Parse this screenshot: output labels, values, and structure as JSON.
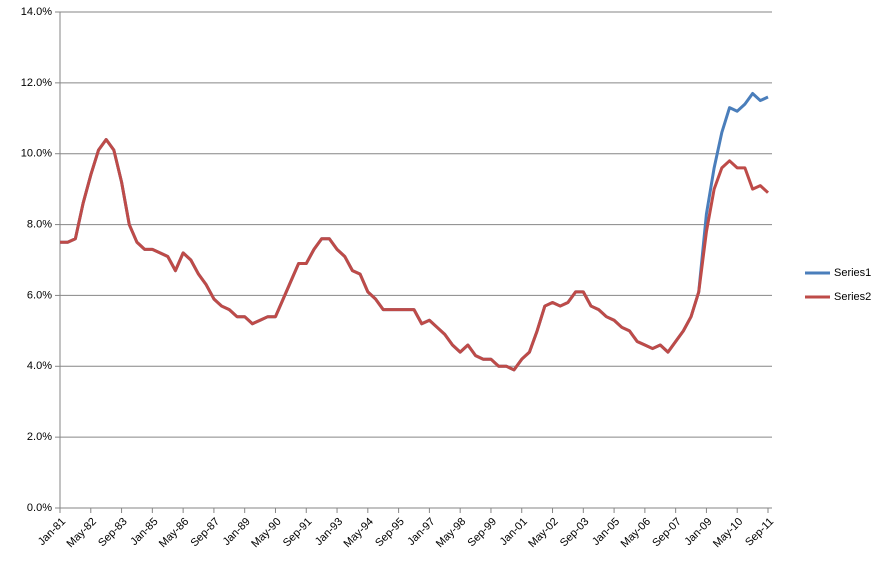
{
  "chart_data": {
    "type": "line",
    "categories": [
      "Jan-81",
      null,
      null,
      null,
      "May-82",
      null,
      null,
      null,
      "Sep-83",
      null,
      null,
      null,
      "Jan-85",
      null,
      null,
      null,
      "May-86",
      null,
      null,
      null,
      "Sep-87",
      null,
      null,
      null,
      "Jan-89",
      null,
      null,
      null,
      "May-90",
      null,
      null,
      null,
      "Sep-91",
      null,
      null,
      null,
      "Jan-93",
      null,
      null,
      null,
      "May-94",
      null,
      null,
      null,
      "Sep-95",
      null,
      null,
      null,
      "Jan-97",
      null,
      null,
      null,
      "May-98",
      null,
      null,
      null,
      "Sep-99",
      null,
      null,
      null,
      "Jan-01",
      null,
      null,
      null,
      "May-02",
      null,
      null,
      null,
      "Sep-03",
      null,
      null,
      null,
      "Jan-05",
      null,
      null,
      null,
      "May-06",
      null,
      null,
      null,
      "Sep-07",
      null,
      null,
      null,
      "Jan-09",
      null,
      null,
      null,
      "May-10",
      null,
      null,
      null,
      "Sep-11"
    ],
    "series": [
      {
        "name": "Series1",
        "color": "#4a7ebb",
        "values": [
          7.5,
          7.5,
          7.6,
          8.6,
          9.4,
          10.1,
          10.4,
          10.1,
          9.2,
          8.0,
          7.5,
          7.3,
          7.3,
          7.2,
          7.1,
          6.7,
          7.2,
          7.0,
          6.6,
          6.3,
          5.9,
          5.7,
          5.6,
          5.4,
          5.4,
          5.2,
          5.3,
          5.4,
          5.4,
          5.9,
          6.4,
          6.9,
          6.9,
          7.3,
          7.6,
          7.6,
          7.3,
          7.1,
          6.7,
          6.6,
          6.1,
          5.9,
          5.6,
          5.6,
          5.6,
          5.6,
          5.6,
          5.2,
          5.3,
          5.1,
          4.9,
          4.6,
          4.4,
          4.6,
          4.3,
          4.2,
          4.2,
          4.0,
          4.0,
          3.9,
          4.2,
          4.4,
          5.0,
          5.7,
          5.8,
          5.7,
          5.8,
          6.1,
          6.1,
          5.7,
          5.6,
          5.4,
          5.3,
          5.1,
          5.0,
          4.7,
          4.6,
          4.5,
          4.6,
          4.4,
          4.7,
          5.0,
          5.4,
          6.1,
          8.3,
          9.6,
          10.6,
          11.3,
          11.2,
          11.4,
          11.7,
          11.5,
          11.6
        ]
      },
      {
        "name": "Series2",
        "color": "#be4b48",
        "values": [
          7.5,
          7.5,
          7.6,
          8.6,
          9.4,
          10.1,
          10.4,
          10.1,
          9.2,
          8.0,
          7.5,
          7.3,
          7.3,
          7.2,
          7.1,
          6.7,
          7.2,
          7.0,
          6.6,
          6.3,
          5.9,
          5.7,
          5.6,
          5.4,
          5.4,
          5.2,
          5.3,
          5.4,
          5.4,
          5.9,
          6.4,
          6.9,
          6.9,
          7.3,
          7.6,
          7.6,
          7.3,
          7.1,
          6.7,
          6.6,
          6.1,
          5.9,
          5.6,
          5.6,
          5.6,
          5.6,
          5.6,
          5.2,
          5.3,
          5.1,
          4.9,
          4.6,
          4.4,
          4.6,
          4.3,
          4.2,
          4.2,
          4.0,
          4.0,
          3.9,
          4.2,
          4.4,
          5.0,
          5.7,
          5.8,
          5.7,
          5.8,
          6.1,
          6.1,
          5.7,
          5.6,
          5.4,
          5.3,
          5.1,
          5.0,
          4.7,
          4.6,
          4.5,
          4.6,
          4.4,
          4.7,
          5.0,
          5.4,
          6.1,
          7.8,
          9.0,
          9.6,
          9.8,
          9.6,
          9.6,
          9.0,
          9.1,
          8.9
        ]
      }
    ],
    "ylim": [
      0,
      14
    ],
    "yticks": [
      {
        "value": 0,
        "label": "0.0%"
      },
      {
        "value": 2,
        "label": "2.0%"
      },
      {
        "value": 4,
        "label": "4.0%"
      },
      {
        "value": 6,
        "label": "6.0%"
      },
      {
        "value": 8,
        "label": "8.0%"
      },
      {
        "value": 10,
        "label": "10.0%"
      },
      {
        "value": 12,
        "label": "12.0%"
      },
      {
        "value": 14,
        "label": "14.0%"
      }
    ],
    "grid": true,
    "legend": "right"
  }
}
